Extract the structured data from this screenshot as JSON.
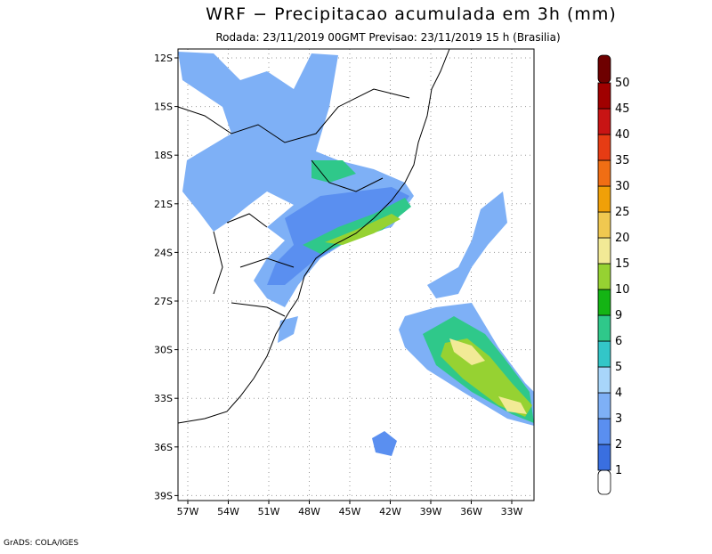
{
  "header": {
    "title": "WRF − Precipitacao acumulada em 3h (mm)",
    "subtitle": "Rodada: 23/11/2019 00GMT Previsao: 23/11/2019 15 h (Brasilia)"
  },
  "map": {
    "lat_labels": [
      "12S",
      "15S",
      "18S",
      "21S",
      "24S",
      "27S",
      "30S",
      "33S",
      "36S",
      "39S"
    ],
    "lon_labels": [
      "57W",
      "54W",
      "51W",
      "48W",
      "45W",
      "42W",
      "39W",
      "36W",
      "33W"
    ]
  },
  "colorbar": {
    "labels": [
      1,
      2,
      3,
      4,
      5,
      6,
      9,
      10,
      15,
      20,
      25,
      30,
      35,
      40,
      45,
      50
    ],
    "colors": [
      "#ffffff",
      "#3a6fe0",
      "#5a8ff0",
      "#7eb0f6",
      "#a8d6fa",
      "#33c6c8",
      "#2fc88a",
      "#14b414",
      "#96d232",
      "#f2ea96",
      "#f0c850",
      "#f0a008",
      "#f06e14",
      "#e63c14",
      "#c81414",
      "#a00000",
      "#6e0000"
    ]
  },
  "footer": "GrADS: COLA/IGES"
}
